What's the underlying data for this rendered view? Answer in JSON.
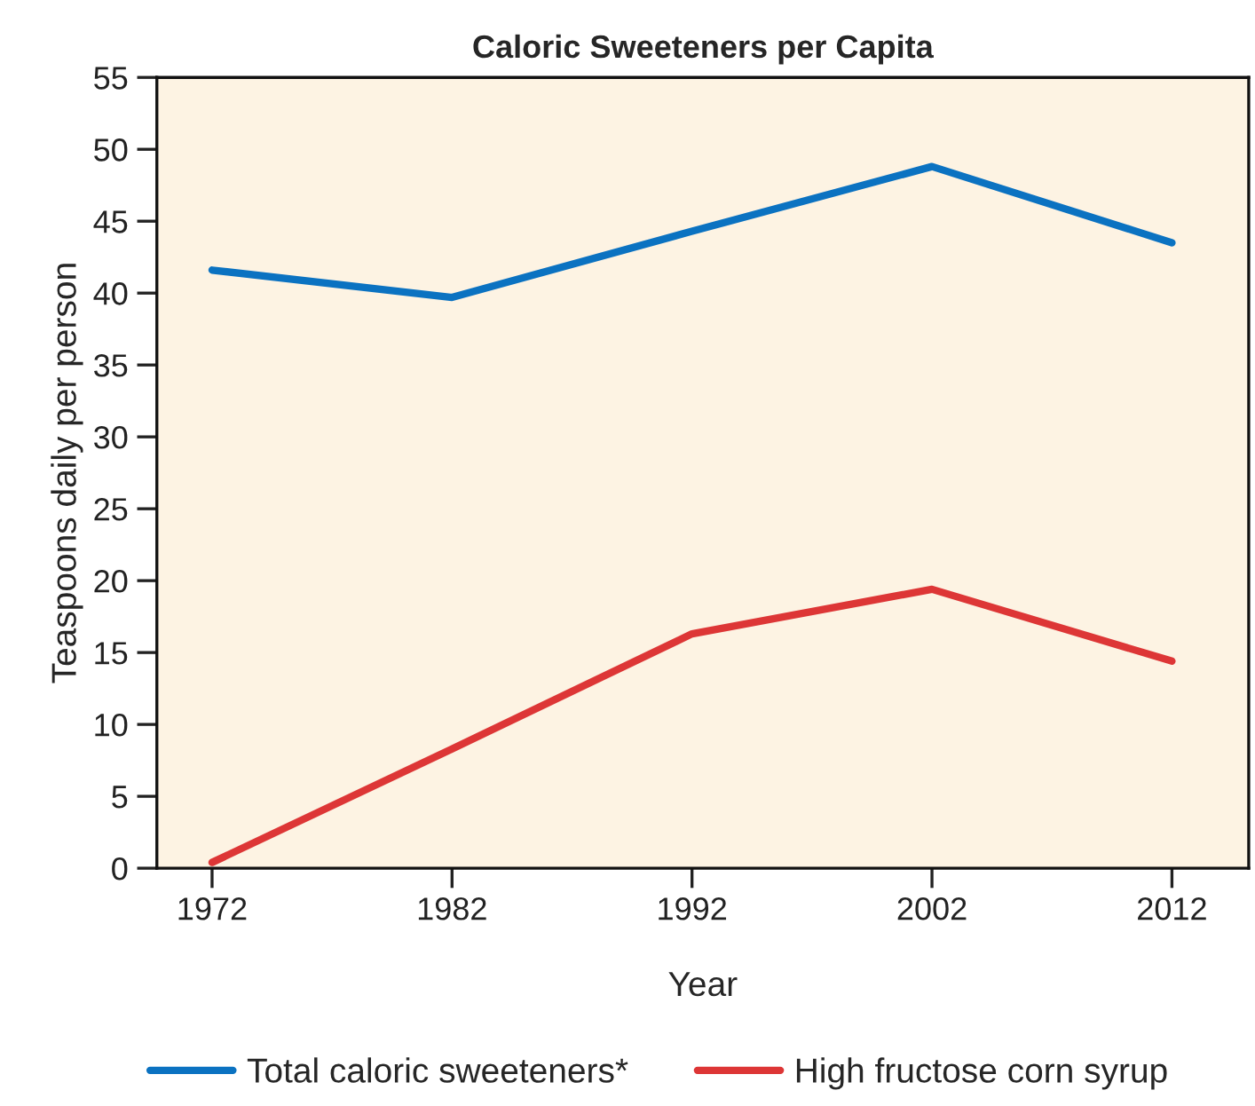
{
  "chart_data": {
    "type": "line",
    "title": "Caloric Sweeteners per Capita",
    "xlabel": "Year",
    "ylabel": "Teaspoons daily per person",
    "categories": [
      "1972",
      "1982",
      "1992",
      "2002",
      "2012"
    ],
    "series": [
      {
        "name": "Total caloric sweeteners*",
        "color": "#0b72c1",
        "values": [
          41.6,
          39.7,
          44.3,
          48.8,
          43.5
        ]
      },
      {
        "name": "High fructose corn syrup",
        "color": "#dd3636",
        "values": [
          0.4,
          8.3,
          16.3,
          19.4,
          14.4
        ]
      }
    ],
    "ylim": [
      0,
      55
    ],
    "yticks": [
      0,
      5,
      10,
      15,
      20,
      25,
      30,
      35,
      40,
      45,
      50,
      55
    ],
    "grid": false,
    "legend": "bottom",
    "marker": "none",
    "line_style": "solid"
  }
}
